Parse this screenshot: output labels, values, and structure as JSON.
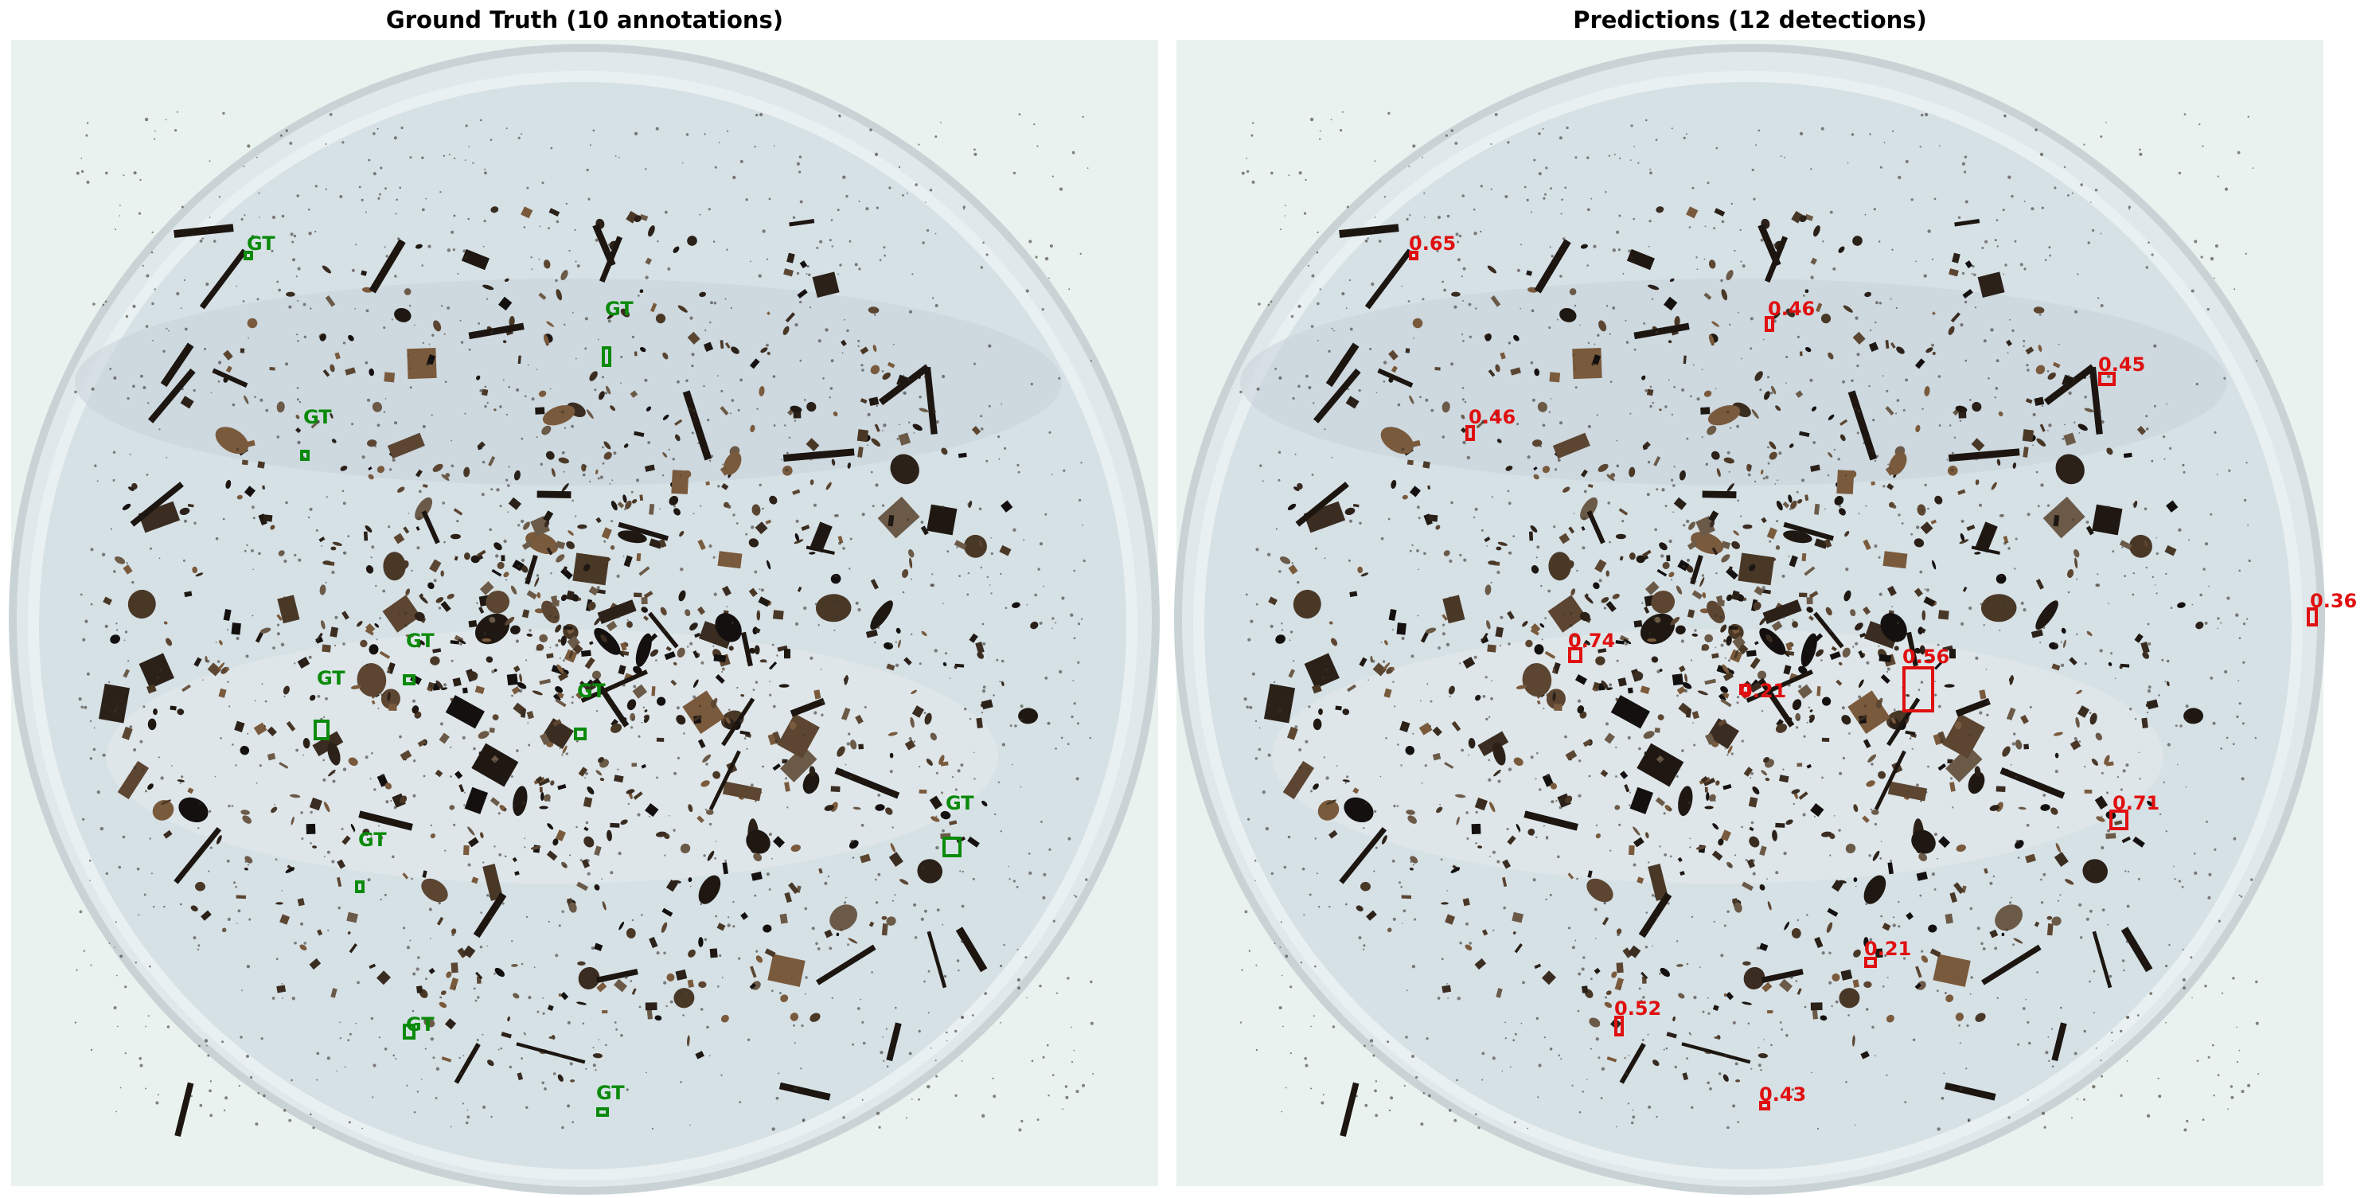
{
  "left_panel": {
    "title": "Ground Truth (10 annotations)",
    "box_color": "#0a8a0a",
    "annotations": [
      {
        "label": "GT"
      },
      {
        "label": "GT"
      },
      {
        "label": "GT"
      },
      {
        "label": "GT"
      },
      {
        "label": "GT"
      },
      {
        "label": "GT"
      },
      {
        "label": "GT"
      },
      {
        "label": "GT"
      },
      {
        "label": "GT"
      },
      {
        "label": "GT"
      }
    ]
  },
  "right_panel": {
    "title": "Predictions (12 detections)",
    "box_color": "#e01010",
    "detections": [
      {
        "score": "0.65"
      },
      {
        "score": "0.46"
      },
      {
        "score": "0.45"
      },
      {
        "score": "0.46"
      },
      {
        "score": "0.36"
      },
      {
        "score": "0.74"
      },
      {
        "score": "0.56"
      },
      {
        "score": "0.21"
      },
      {
        "score": "0.71"
      },
      {
        "score": "0.21"
      },
      {
        "score": "0.52"
      },
      {
        "score": "0.43"
      }
    ]
  },
  "scene": {
    "description_icon": "petri-dish-icon",
    "dish_color": "#dfe8ea",
    "debris_color": "#2a2018"
  }
}
